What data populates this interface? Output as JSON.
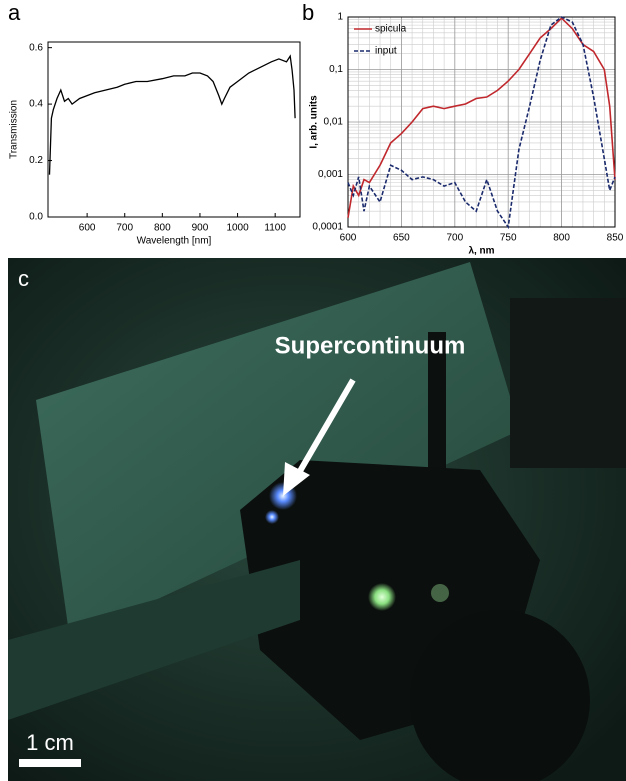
{
  "chart_data": [
    {
      "type": "line",
      "label": "a",
      "xlabel": "Wavelength [nm]",
      "ylabel": "Transmission",
      "color": "#000000",
      "x": [
        500,
        505,
        510,
        520,
        530,
        540,
        550,
        560,
        580,
        600,
        620,
        650,
        680,
        700,
        730,
        760,
        800,
        830,
        860,
        880,
        900,
        920,
        935,
        950,
        958,
        965,
        980,
        1000,
        1030,
        1060,
        1090,
        1110,
        1130,
        1140,
        1145,
        1150,
        1153
      ],
      "values": [
        0.15,
        0.35,
        0.38,
        0.42,
        0.45,
        0.41,
        0.42,
        0.4,
        0.42,
        0.43,
        0.44,
        0.45,
        0.46,
        0.47,
        0.48,
        0.48,
        0.49,
        0.5,
        0.5,
        0.51,
        0.51,
        0.5,
        0.48,
        0.43,
        0.4,
        0.42,
        0.46,
        0.48,
        0.51,
        0.53,
        0.55,
        0.56,
        0.55,
        0.57,
        0.52,
        0.45,
        0.35
      ],
      "xlim": [
        496,
        1166
      ],
      "xticks": [
        600,
        700,
        800,
        900,
        1000,
        1100
      ],
      "ylim": [
        0,
        0.62
      ],
      "yticks": [
        {
          "value": 0,
          "label": "0.0"
        },
        0.2,
        0.4,
        0.6
      ]
    },
    {
      "type": "line",
      "label": "b",
      "xlabel": "λ, nm",
      "ylabel": "I, arb. units",
      "log_y": true,
      "grid": true,
      "legend": "upper left",
      "x": [
        600,
        605,
        610,
        615,
        620,
        630,
        640,
        650,
        660,
        670,
        680,
        690,
        700,
        710,
        720,
        730,
        740,
        750,
        760,
        770,
        780,
        790,
        800,
        810,
        820,
        830,
        840,
        845,
        850
      ],
      "series": [
        {
          "name": "spicula",
          "color": "#c0282d",
          "style": "solid",
          "values": [
            0.00015,
            0.0006,
            0.0004,
            0.0008,
            0.0007,
            0.0015,
            0.004,
            0.006,
            0.01,
            0.018,
            0.02,
            0.018,
            0.02,
            0.022,
            0.028,
            0.03,
            0.04,
            0.06,
            0.1,
            0.2,
            0.4,
            0.6,
            0.95,
            0.6,
            0.3,
            0.22,
            0.1,
            0.02,
            0.0008
          ]
        },
        {
          "name": "input",
          "color": "#1a2a6c",
          "style": "dashed",
          "values": [
            0.0007,
            0.0004,
            0.0009,
            0.0002,
            0.0006,
            0.0003,
            0.0015,
            0.0012,
            0.0008,
            0.0009,
            0.0008,
            0.0006,
            0.0007,
            0.0003,
            0.0002,
            0.0008,
            0.0002,
            0.0001,
            0.003,
            0.02,
            0.15,
            0.7,
            1,
            0.8,
            0.3,
            0.03,
            0.002,
            0.0005,
            0.0009
          ]
        }
      ],
      "xlim": [
        600,
        850
      ],
      "xticks": [
        600,
        650,
        700,
        750,
        800,
        850
      ],
      "ylim": [
        0.0001,
        1
      ],
      "yticks": [
        {
          "value": 0.0001,
          "label": "0,0001"
        },
        {
          "value": 0.001,
          "label": "0,001"
        },
        {
          "value": 0.01,
          "label": "0,01"
        },
        {
          "value": 0.1,
          "label": "0,1"
        },
        1
      ]
    }
  ],
  "photo": {
    "label": "c",
    "annotation": "Supercontinuum",
    "scale_bar": "1 cm"
  }
}
